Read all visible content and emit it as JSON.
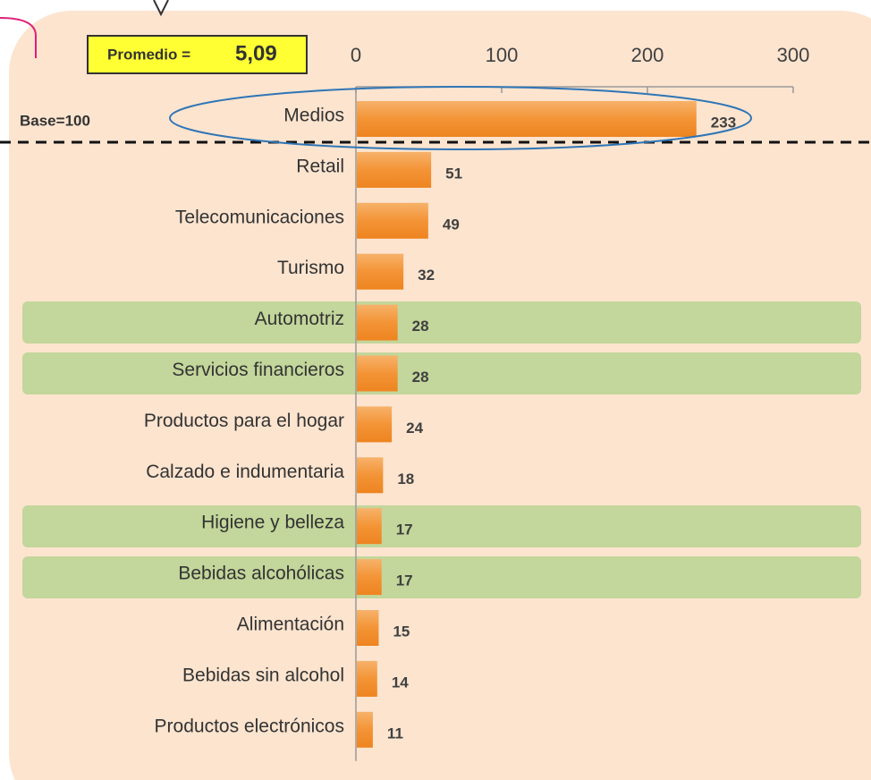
{
  "chart_data": {
    "type": "bar",
    "orientation": "horizontal",
    "categories": [
      "Medios",
      "Retail",
      "Telecomunicaciones",
      "Turismo",
      "Automotriz",
      "Servicios financieros",
      "Productos para el hogar",
      "Calzado e indumentaria",
      "Higiene y belleza",
      "Bebidas alcohólicas",
      "Alimentación",
      "Bebidas sin alcohol",
      "Productos electrónicos"
    ],
    "values": [
      233,
      51,
      49,
      32,
      28,
      28,
      24,
      18,
      17,
      17,
      15,
      14,
      11
    ],
    "color": "#f39436",
    "xlim": [
      0,
      300
    ],
    "xticks": [
      0,
      100,
      200,
      300
    ],
    "annotations": [
      "Promedio =",
      "5,09",
      "Base=100"
    ]
  }
}
